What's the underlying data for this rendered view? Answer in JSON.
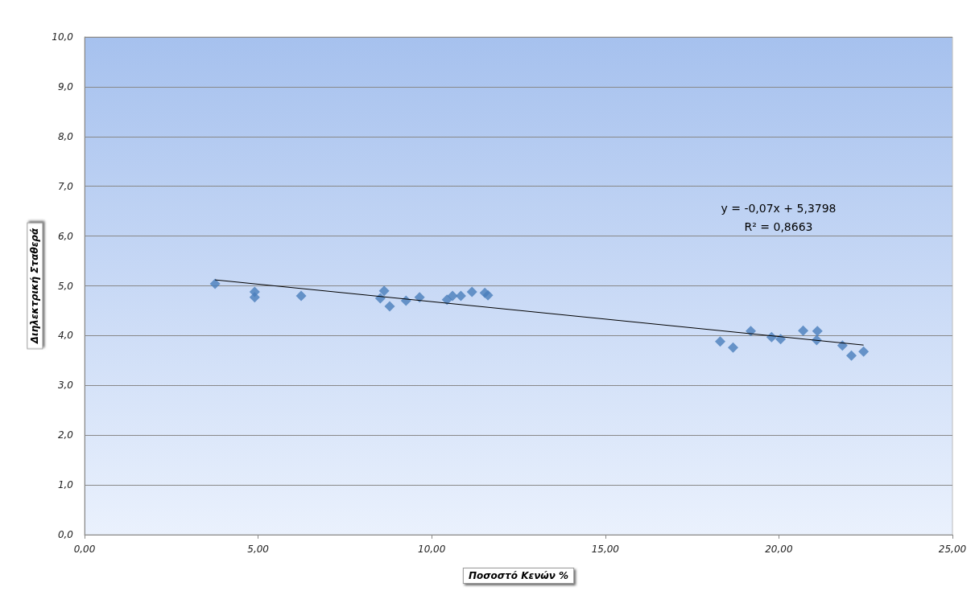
{
  "chart_data": {
    "type": "scatter",
    "xlabel": "Ποσοστό Κενών %",
    "ylabel": "Διηλεκτρική Σταθερά",
    "xlim": [
      0,
      25
    ],
    "xticks": [
      {
        "value": 0,
        "label": "0,00"
      },
      {
        "value": 5,
        "label": "5,00"
      },
      {
        "value": 10,
        "label": "10,00"
      },
      {
        "value": 15,
        "label": "15,00"
      },
      {
        "value": 20,
        "label": "20,00"
      },
      {
        "value": 25,
        "label": "25,00"
      }
    ],
    "ylim": [
      0,
      10
    ],
    "yticks": [
      {
        "value": 0,
        "label": "0,0"
      },
      {
        "value": 1,
        "label": "1,0"
      },
      {
        "value": 2,
        "label": "2,0"
      },
      {
        "value": 3,
        "label": "3,0"
      },
      {
        "value": 4,
        "label": "4,0"
      },
      {
        "value": 5,
        "label": "5,0"
      },
      {
        "value": 6,
        "label": "6,0"
      },
      {
        "value": 7,
        "label": "7,0"
      },
      {
        "value": 8,
        "label": "8,0"
      },
      {
        "value": 9,
        "label": "9,0"
      },
      {
        "value": 10,
        "label": "10,0"
      }
    ],
    "grid": "y",
    "marker": "diamond",
    "annotations": [
      "y = -0,07x + 5,3798",
      "R² = 0,8663"
    ],
    "series": [
      {
        "color": "#4a7ebb",
        "x": [
          3.76,
          4.9,
          4.9,
          6.24,
          8.52,
          8.63,
          8.79,
          9.26,
          9.65,
          10.44,
          10.6,
          10.84,
          11.16,
          11.53,
          11.62,
          18.31,
          18.68,
          19.19,
          19.79,
          20.05,
          20.7,
          21.11,
          21.09,
          21.83,
          22.09,
          22.44
        ],
        "values": [
          5.04,
          4.88,
          4.77,
          4.8,
          4.75,
          4.9,
          4.59,
          4.7,
          4.77,
          4.72,
          4.8,
          4.8,
          4.88,
          4.86,
          4.81,
          3.88,
          3.76,
          4.09,
          3.97,
          3.93,
          4.1,
          4.09,
          3.91,
          3.8,
          3.6,
          3.68
        ]
      },
      {
        "type": "line",
        "color": "#000000",
        "marker": "none",
        "x": [
          3.76,
          22.44
        ],
        "values": [
          5.12,
          3.81
        ]
      }
    ]
  }
}
